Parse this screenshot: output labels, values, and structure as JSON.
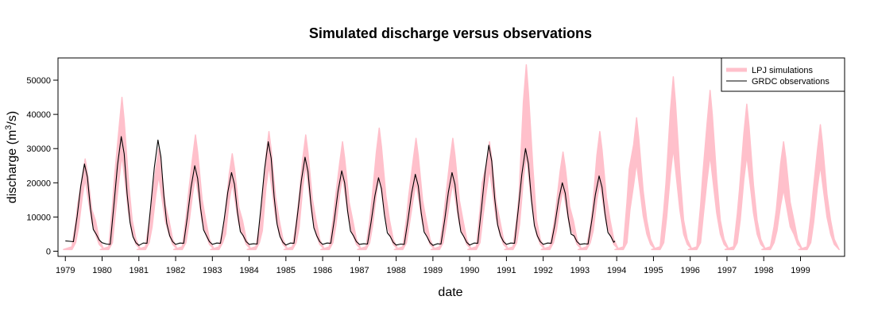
{
  "chart_data": {
    "type": "line",
    "title": "Simulated discharge versus observations",
    "xlabel": "date",
    "ylabel": "discharge (m³/s)",
    "ylabel_main": "discharge (m",
    "ylabel_sup": "3",
    "ylabel_tail": "/s)",
    "xlim": [
      1978.8,
      2000.2
    ],
    "ylim": [
      -1500,
      56500
    ],
    "year_ticks": [
      "1979",
      "1980",
      "1981",
      "1982",
      "1983",
      "1984",
      "1985",
      "1986",
      "1987",
      "1988",
      "1989",
      "1990",
      "1991",
      "1992",
      "1993",
      "1994",
      "1995",
      "1996",
      "1997",
      "1998",
      "1999"
    ],
    "y_ticks": [
      0,
      10000,
      20000,
      30000,
      40000,
      50000
    ],
    "legend_position": "top-right",
    "colors": {
      "simulation": "#ffc0cb",
      "observation": "#000000"
    },
    "series": [
      {
        "name": "LPJ simulations",
        "type": "band",
        "annual": [
          {
            "year": 1979,
            "peak_lo": 21000,
            "peak_hi": 27000,
            "start": 14000
          },
          {
            "year": 1980,
            "peak_lo": 28000,
            "peak_hi": 45000,
            "start": 22000
          },
          {
            "year": 1981,
            "peak_lo": 22000,
            "peak_hi": 30000,
            "start": 14000
          },
          {
            "year": 1982,
            "peak_lo": 22000,
            "peak_hi": 34000,
            "start": 16000
          },
          {
            "year": 1983,
            "peak_lo": 20000,
            "peak_hi": 28500,
            "start": 10000
          },
          {
            "year": 1984,
            "peak_lo": 25000,
            "peak_hi": 35000,
            "start": 12000
          },
          {
            "year": 1985,
            "peak_lo": 25000,
            "peak_hi": 34000,
            "start": 14000
          },
          {
            "year": 1986,
            "peak_lo": 22000,
            "peak_hi": 32000,
            "start": 15000
          },
          {
            "year": 1987,
            "peak_lo": 22000,
            "peak_hi": 36000,
            "start": 15000
          },
          {
            "year": 1988,
            "peak_lo": 20000,
            "peak_hi": 33000,
            "start": 16000
          },
          {
            "year": 1989,
            "peak_lo": 20000,
            "peak_hi": 33000,
            "start": 15000
          },
          {
            "year": 1990,
            "peak_lo": 24000,
            "peak_hi": 32000,
            "start": 20000
          },
          {
            "year": 1991,
            "peak_lo": 28000,
            "peak_hi": 54500,
            "start": 16000
          },
          {
            "year": 1992,
            "peak_lo": 18000,
            "peak_hi": 29000,
            "start": 12000
          },
          {
            "year": 1993,
            "peak_lo": 20000,
            "peak_hi": 35000,
            "start": 12000
          },
          {
            "year": 1994,
            "peak_lo": 26000,
            "peak_hi": 39000,
            "start": 24000
          },
          {
            "year": 1995,
            "peak_lo": 30000,
            "peak_hi": 51000,
            "start": 20000
          },
          {
            "year": 1996,
            "peak_lo": 28000,
            "peak_hi": 47000,
            "start": 22000
          },
          {
            "year": 1997,
            "peak_lo": 28000,
            "peak_hi": 43000,
            "start": 18000
          },
          {
            "year": 1998,
            "peak_lo": 18000,
            "peak_hi": 32000,
            "start": 12000
          },
          {
            "year": 1999,
            "peak_lo": 25000,
            "peak_hi": 37000,
            "start": 17000
          }
        ],
        "low_flow": 500
      },
      {
        "name": "GRDC observations",
        "type": "line",
        "annual": [
          {
            "year": 1979,
            "peak": 25500,
            "min": 2500
          },
          {
            "year": 1980,
            "peak": 33500,
            "min": 1700
          },
          {
            "year": 1981,
            "peak": 32500,
            "min": 2000
          },
          {
            "year": 1982,
            "peak": 25000,
            "min": 2000
          },
          {
            "year": 1983,
            "peak": 23000,
            "min": 2000
          },
          {
            "year": 1984,
            "peak": 32000,
            "min": 1800
          },
          {
            "year": 1985,
            "peak": 27500,
            "min": 2000
          },
          {
            "year": 1986,
            "peak": 23500,
            "min": 2000
          },
          {
            "year": 1987,
            "peak": 21500,
            "min": 1800
          },
          {
            "year": 1988,
            "peak": 22500,
            "min": 1700
          },
          {
            "year": 1989,
            "peak": 23000,
            "min": 1800
          },
          {
            "year": 1990,
            "peak": 31000,
            "min": 2000
          },
          {
            "year": 1991,
            "peak": 30000,
            "min": 2000
          },
          {
            "year": 1992,
            "peak": 20000,
            "min": 2000
          },
          {
            "year": 1993,
            "peak": 22000,
            "min": 1800
          }
        ],
        "end": {
          "x": 1993.95,
          "y": 3000
        }
      }
    ]
  }
}
